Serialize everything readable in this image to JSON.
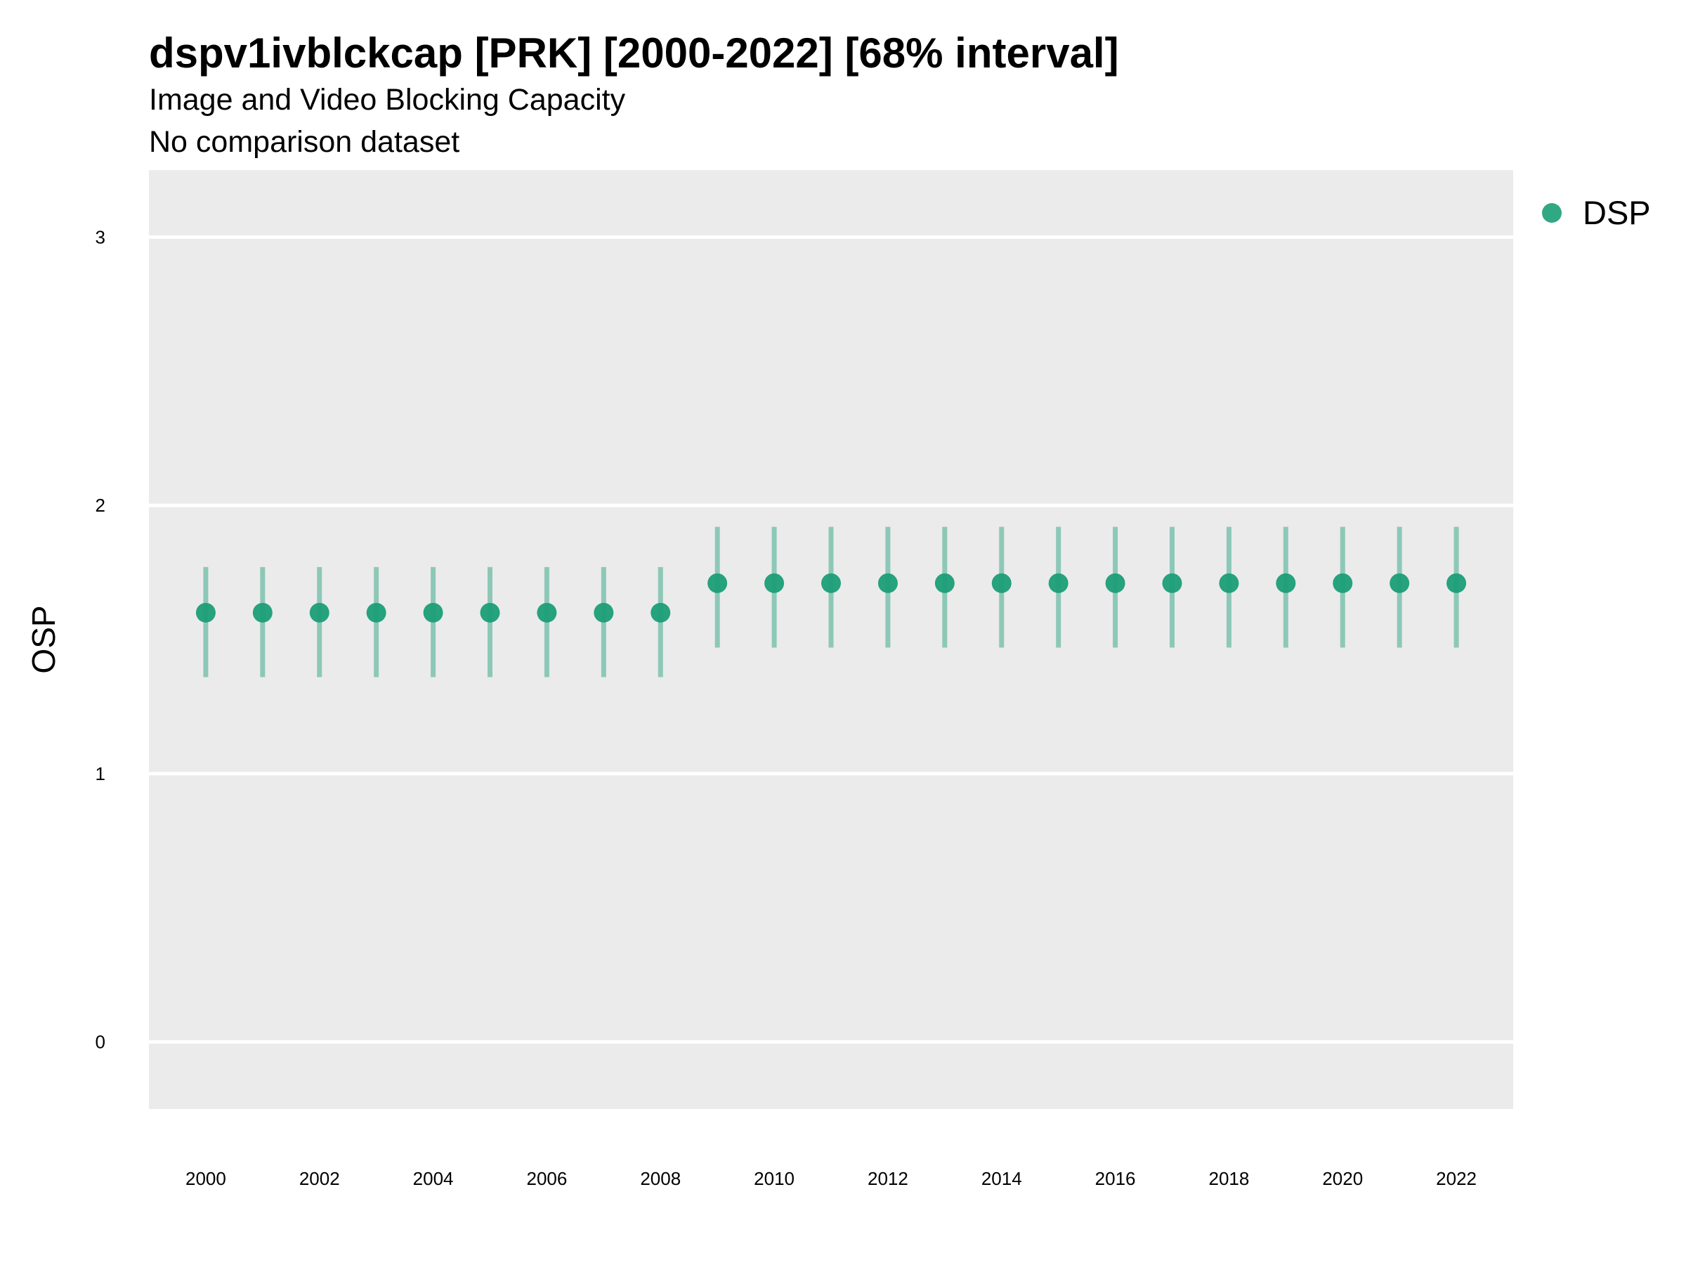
{
  "chart_data": {
    "type": "scatter",
    "title": "dspv1ivblckcap [PRK] [2000-2022] [68% interval]",
    "subtitle": "Image and Video Blocking Capacity",
    "caption": "No comparison dataset",
    "xlabel": "",
    "ylabel": "OSP",
    "xlim": [
      1999,
      2023
    ],
    "ylim": [
      -0.25,
      3.25
    ],
    "x_ticks": [
      "2000",
      "2002",
      "2004",
      "2006",
      "2008",
      "2010",
      "2012",
      "2014",
      "2016",
      "2018",
      "2020",
      "2022"
    ],
    "y_ticks": [
      "0",
      "1",
      "2",
      "3"
    ],
    "grid": true,
    "legend_position": "right",
    "series": [
      {
        "name": "DSP",
        "color": "#1b9e77",
        "x": [
          2000,
          2001,
          2002,
          2003,
          2004,
          2005,
          2006,
          2007,
          2008,
          2009,
          2010,
          2011,
          2012,
          2013,
          2014,
          2015,
          2016,
          2017,
          2018,
          2019,
          2020,
          2021,
          2022
        ],
        "y": [
          1.6,
          1.6,
          1.6,
          1.6,
          1.6,
          1.6,
          1.6,
          1.6,
          1.6,
          1.71,
          1.71,
          1.71,
          1.71,
          1.71,
          1.71,
          1.71,
          1.71,
          1.71,
          1.71,
          1.71,
          1.71,
          1.71,
          1.71
        ],
        "lower": [
          1.36,
          1.36,
          1.36,
          1.36,
          1.36,
          1.36,
          1.36,
          1.36,
          1.36,
          1.47,
          1.47,
          1.47,
          1.47,
          1.47,
          1.47,
          1.47,
          1.47,
          1.47,
          1.47,
          1.47,
          1.47,
          1.47,
          1.47
        ],
        "upper": [
          1.77,
          1.77,
          1.77,
          1.77,
          1.77,
          1.77,
          1.77,
          1.77,
          1.77,
          1.92,
          1.92,
          1.92,
          1.92,
          1.92,
          1.92,
          1.92,
          1.92,
          1.92,
          1.92,
          1.92,
          1.92,
          1.92,
          1.92
        ]
      }
    ]
  }
}
